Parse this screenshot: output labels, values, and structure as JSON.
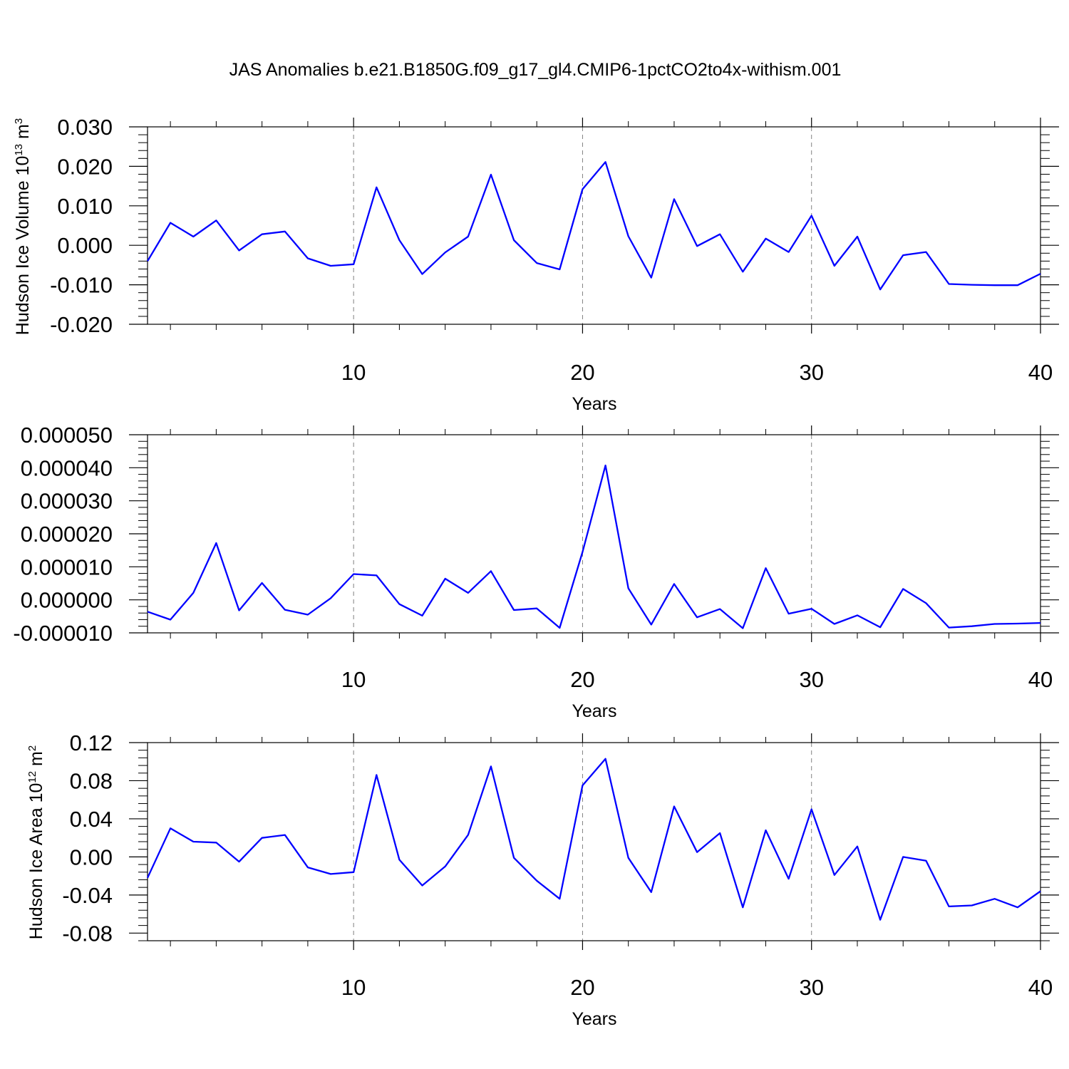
{
  "title": "JAS Anomalies b.e21.B1850G.f09_g17_gl4.CMIP6-1pctCO2to4x-withism.001",
  "colors": {
    "line": "#0000ff",
    "axis": "#000000",
    "grid": "#808080"
  },
  "chart_data": [
    {
      "type": "line",
      "xlabel": "Years",
      "ylabel": "Hudson Ice Volume 10",
      "ylabel_exp": "13",
      "ylabel_unit": " m",
      "ylabel_unit_exp": "3",
      "xlim": [
        1,
        40
      ],
      "ylim": [
        -0.02,
        0.03
      ],
      "x_ticks": [
        10,
        20,
        30,
        40
      ],
      "x_tick_labels": [
        "10",
        "20",
        "30",
        "40"
      ],
      "y_ticks": [
        -0.02,
        -0.01,
        0.0,
        0.01,
        0.02,
        0.03
      ],
      "y_tick_labels": [
        "-0.020",
        "-0.010",
        "0.000",
        "0.010",
        "0.020",
        "0.030"
      ],
      "grid": "vertical dashed at major x ticks",
      "x": [
        1,
        2,
        3,
        4,
        5,
        6,
        7,
        8,
        9,
        10,
        11,
        12,
        13,
        14,
        15,
        16,
        17,
        18,
        19,
        20,
        21,
        22,
        23,
        24,
        25,
        26,
        27,
        28,
        29,
        30,
        31,
        32,
        33,
        34,
        35,
        36,
        37,
        38,
        39,
        40
      ],
      "series": [
        {
          "values": [
            -0.004,
            0.0057,
            0.0022,
            0.0063,
            -0.0013,
            0.0028,
            0.0035,
            -0.0033,
            -0.0052,
            -0.0048,
            0.0147,
            0.0013,
            -0.0073,
            -0.0018,
            0.0022,
            0.0179,
            0.0013,
            -0.0045,
            -0.0061,
            0.0142,
            0.0211,
            0.0023,
            -0.0082,
            0.0117,
            -0.0002,
            0.0028,
            -0.0067,
            0.0017,
            -0.0017,
            0.0075,
            -0.0052,
            0.0022,
            -0.0112,
            -0.0025,
            -0.0017,
            -0.0098,
            -0.01,
            -0.0101,
            -0.0101,
            -0.0072
          ]
        }
      ]
    },
    {
      "type": "line",
      "xlabel": "Years",
      "ylabel": "",
      "xlim": [
        1,
        40
      ],
      "ylim": [
        -1e-05,
        5e-05
      ],
      "x_ticks": [
        10,
        20,
        30,
        40
      ],
      "x_tick_labels": [
        "10",
        "20",
        "30",
        "40"
      ],
      "y_ticks": [
        -1e-05,
        0.0,
        1e-05,
        2e-05,
        3e-05,
        4e-05,
        5e-05
      ],
      "y_tick_labels": [
        "-0.000010",
        "0.000000",
        "0.000010",
        "0.000020",
        "0.000030",
        "0.000040",
        "0.000050"
      ],
      "grid": "vertical dashed at major x ticks",
      "x": [
        1,
        2,
        3,
        4,
        5,
        6,
        7,
        8,
        9,
        10,
        11,
        12,
        13,
        14,
        15,
        16,
        17,
        18,
        19,
        20,
        21,
        22,
        23,
        24,
        25,
        26,
        27,
        28,
        29,
        30,
        31,
        32,
        33,
        34,
        35,
        36,
        37,
        38,
        39,
        40
      ],
      "series": [
        {
          "values": [
            -3.6e-06,
            -6e-06,
            2.1e-06,
            1.72e-05,
            -3.2e-06,
            5.1e-06,
            -3e-06,
            -4.5e-06,
            5e-07,
            7.8e-06,
            7.4e-06,
            -1.3e-06,
            -4.8e-06,
            6.4e-06,
            2.1e-06,
            8.7e-06,
            -3.1e-06,
            -2.6e-06,
            -8.5e-06,
            1.45e-05,
            4.07e-05,
            3.5e-06,
            -7.5e-06,
            4.8e-06,
            -5.3e-06,
            -2.8e-06,
            -8.6e-06,
            9.6e-06,
            -4.2e-06,
            -2.7e-06,
            -7.3e-06,
            -4.7e-06,
            -8.3e-06,
            3.3e-06,
            -1e-06,
            -8.4e-06,
            -8e-06,
            -7.3e-06,
            -7.2e-06,
            -7e-06
          ]
        }
      ]
    },
    {
      "type": "line",
      "xlabel": "Years",
      "ylabel": "Hudson Ice Area 10",
      "ylabel_exp": "12",
      "ylabel_unit": " m",
      "ylabel_unit_exp": "2",
      "xlim": [
        1,
        40
      ],
      "ylim": [
        -0.088,
        0.12
      ],
      "x_ticks": [
        10,
        20,
        30,
        40
      ],
      "x_tick_labels": [
        "10",
        "20",
        "30",
        "40"
      ],
      "y_ticks": [
        -0.08,
        -0.04,
        0.0,
        0.04,
        0.08,
        0.12
      ],
      "y_tick_labels": [
        "-0.08",
        "-0.04",
        "0.00",
        "0.04",
        "0.08",
        "0.12"
      ],
      "grid": "vertical dashed at major x ticks",
      "x": [
        1,
        2,
        3,
        4,
        5,
        6,
        7,
        8,
        9,
        10,
        11,
        12,
        13,
        14,
        15,
        16,
        17,
        18,
        19,
        20,
        21,
        22,
        23,
        24,
        25,
        26,
        27,
        28,
        29,
        30,
        31,
        32,
        33,
        34,
        35,
        36,
        37,
        38,
        39,
        40
      ],
      "series": [
        {
          "values": [
            -0.022,
            0.03,
            0.016,
            0.015,
            -0.005,
            0.02,
            0.023,
            -0.011,
            -0.018,
            -0.016,
            0.086,
            -0.003,
            -0.03,
            -0.01,
            0.023,
            0.095,
            -0.001,
            -0.025,
            -0.044,
            0.075,
            0.103,
            -0.001,
            -0.037,
            0.053,
            0.005,
            0.025,
            -0.053,
            0.028,
            -0.023,
            0.05,
            -0.019,
            0.011,
            -0.066,
            0.0,
            -0.004,
            -0.052,
            -0.051,
            -0.044,
            -0.053,
            -0.036
          ]
        }
      ]
    }
  ]
}
